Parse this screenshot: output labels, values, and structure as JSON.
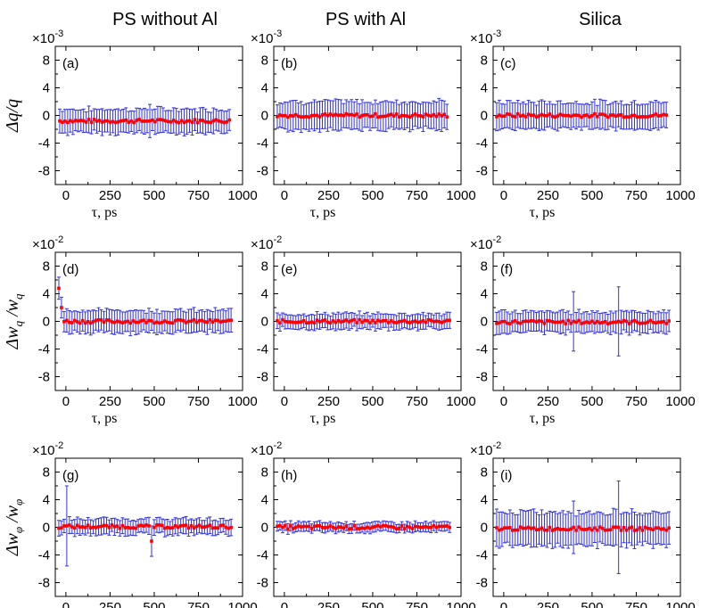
{
  "column_titles": [
    "PS without Al",
    "PS with Al",
    "Silica"
  ],
  "row_labels": [
    {
      "main": "Δq/q",
      "sub": ""
    },
    {
      "main": "Δw",
      "sub": "q",
      "mid": " /w",
      "sub2": "q"
    },
    {
      "main": "Δw",
      "sub": "φ",
      "mid": " /w",
      "sub2": "φ"
    }
  ],
  "row_multipliers": [
    {
      "base": "×10",
      "exp": "-3"
    },
    {
      "base": "×10",
      "exp": "-2"
    },
    {
      "base": "×10",
      "exp": "-2"
    }
  ],
  "x_axis": {
    "label": "τ, ps",
    "ticks": [
      0,
      250,
      500,
      750,
      1000
    ],
    "range": [
      -60,
      1000
    ]
  },
  "y_axis": {
    "ticks": [
      8,
      4,
      0,
      -4,
      -8
    ],
    "range": [
      -10,
      10
    ]
  },
  "colors": {
    "points": "#ff0000",
    "errorbars": "#3333dd",
    "axes": "#000000"
  },
  "chart_data": [
    {
      "type": "scatter",
      "panel_label": "(a)",
      "row": 0,
      "col": 0,
      "x_start": -35,
      "x_step": 15,
      "n": 65,
      "y_center": -0.8,
      "error": 1.7,
      "outliers": [
        {
          "x": 480,
          "y": -0.8,
          "error": 2.4
        }
      ]
    },
    {
      "type": "scatter",
      "panel_label": "(b)",
      "row": 0,
      "col": 1,
      "x_start": -40,
      "x_step": 15,
      "n": 65,
      "y_center": 0.0,
      "error": 2.0,
      "outliers": []
    },
    {
      "type": "scatter",
      "panel_label": "(c)",
      "row": 0,
      "col": 2,
      "x_start": -40,
      "x_step": 15,
      "n": 65,
      "y_center": 0.0,
      "error": 1.9,
      "outliers": []
    },
    {
      "type": "scatter",
      "panel_label": "(d)",
      "row": 1,
      "col": 0,
      "x_start": -40,
      "x_step": 15,
      "n": 66,
      "y_center": 0.0,
      "error": 1.6,
      "outliers": [
        {
          "x": -40,
          "y": 4.8,
          "error": 1.6
        },
        {
          "x": -25,
          "y": 2.0,
          "error": 1.5
        }
      ]
    },
    {
      "type": "scatter",
      "panel_label": "(e)",
      "row": 1,
      "col": 1,
      "x_start": -40,
      "x_step": 15,
      "n": 66,
      "y_center": 0.0,
      "error": 1.1,
      "outliers": []
    },
    {
      "type": "scatter",
      "panel_label": "(f)",
      "row": 1,
      "col": 2,
      "x_start": -40,
      "x_step": 15,
      "n": 66,
      "y_center": -0.1,
      "error": 1.5,
      "outliers": [
        {
          "x": 400,
          "y": 0.0,
          "error": 4.3
        },
        {
          "x": 650,
          "y": 0.0,
          "error": 5.0
        }
      ]
    },
    {
      "type": "scatter",
      "panel_label": "(g)",
      "row": 2,
      "col": 0,
      "x_start": -40,
      "x_step": 15,
      "n": 66,
      "y_center": 0.1,
      "error": 1.1,
      "outliers": [
        {
          "x": 10,
          "y": 0.2,
          "error": 5.8
        },
        {
          "x": 480,
          "y": -2.0,
          "error": 2.2
        }
      ]
    },
    {
      "type": "scatter",
      "panel_label": "(h)",
      "row": 2,
      "col": 1,
      "x_start": -40,
      "x_step": 15,
      "n": 66,
      "y_center": 0.0,
      "error": 0.7,
      "outliers": []
    },
    {
      "type": "scatter",
      "panel_label": "(i)",
      "row": 2,
      "col": 2,
      "x_start": -40,
      "x_step": 15,
      "n": 66,
      "y_center": -0.2,
      "error": 2.4,
      "outliers": [
        {
          "x": 400,
          "y": 0.0,
          "error": 3.8
        },
        {
          "x": 650,
          "y": 0.0,
          "error": 6.7
        }
      ]
    }
  ]
}
